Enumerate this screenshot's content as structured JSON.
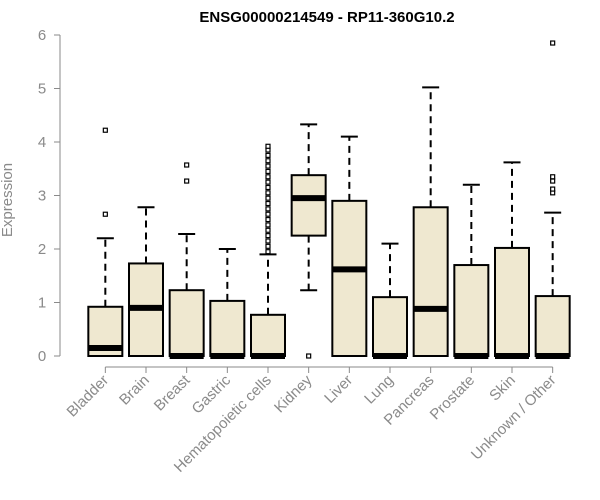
{
  "chart_data": {
    "type": "boxplot",
    "title": "ENSG00000214549 - RP11-360G10.2",
    "xlabel": "",
    "ylabel": "Expression",
    "ylim": [
      0,
      6
    ],
    "yticks": [
      "0",
      "1",
      "2",
      "3",
      "4",
      "5",
      "6"
    ],
    "grid": false,
    "legend": "none",
    "colors": {
      "box_fill": "#efe8d0",
      "stroke": "#000000",
      "axis": "#8a8a8a"
    },
    "categories": [
      "Bladder",
      "Brain",
      "Breast",
      "Gastric",
      "Hematopoietic cells",
      "Kidney",
      "Liver",
      "Lung",
      "Pancreas",
      "Prostate",
      "Skin",
      "Unknown / Other"
    ],
    "boxes": [
      {
        "name": "Bladder",
        "min": 0,
        "q1": 0,
        "median": 0.15,
        "q3": 0.92,
        "max": 2.2,
        "outliers": [
          2.65,
          4.22
        ]
      },
      {
        "name": "Brain",
        "min": 0,
        "q1": 0,
        "median": 0.9,
        "q3": 1.73,
        "max": 2.78,
        "outliers": []
      },
      {
        "name": "Breast",
        "min": 0,
        "q1": 0,
        "median": 0,
        "q3": 1.23,
        "max": 2.28,
        "outliers": [
          3.27,
          3.57
        ]
      },
      {
        "name": "Gastric",
        "min": 0,
        "q1": 0,
        "median": 0,
        "q3": 1.03,
        "max": 2.0,
        "outliers": []
      },
      {
        "name": "Hematopoietic cells",
        "min": 0,
        "q1": 0,
        "median": 0,
        "q3": 0.77,
        "max": 1.9,
        "outliers": [
          1.95,
          2.05,
          2.15,
          2.25,
          2.35,
          2.45,
          2.55,
          2.65,
          2.75,
          2.85,
          2.95,
          3.05,
          3.15,
          3.25,
          3.35,
          3.45,
          3.55,
          3.65,
          3.75,
          3.85,
          3.92
        ]
      },
      {
        "name": "Kidney",
        "min": 1.23,
        "q1": 2.25,
        "median": 2.95,
        "q3": 3.38,
        "max": 4.33,
        "outliers": [
          0.0
        ]
      },
      {
        "name": "Liver",
        "min": 0,
        "q1": 0,
        "median": 1.62,
        "q3": 2.9,
        "max": 4.1,
        "outliers": []
      },
      {
        "name": "Lung",
        "min": 0,
        "q1": 0,
        "median": 0,
        "q3": 1.1,
        "max": 2.1,
        "outliers": []
      },
      {
        "name": "Pancreas",
        "min": 0,
        "q1": 0,
        "median": 0.88,
        "q3": 2.78,
        "max": 5.02,
        "outliers": []
      },
      {
        "name": "Prostate",
        "min": 0,
        "q1": 0,
        "median": 0,
        "q3": 1.7,
        "max": 3.2,
        "outliers": []
      },
      {
        "name": "Skin",
        "min": 0,
        "q1": 0,
        "median": 0,
        "q3": 2.02,
        "max": 3.62,
        "outliers": []
      },
      {
        "name": "Unknown / Other",
        "min": 0,
        "q1": 0,
        "median": 0,
        "q3": 1.12,
        "max": 2.68,
        "outliers": [
          3.05,
          3.12,
          3.27,
          3.35,
          5.85
        ]
      }
    ]
  }
}
